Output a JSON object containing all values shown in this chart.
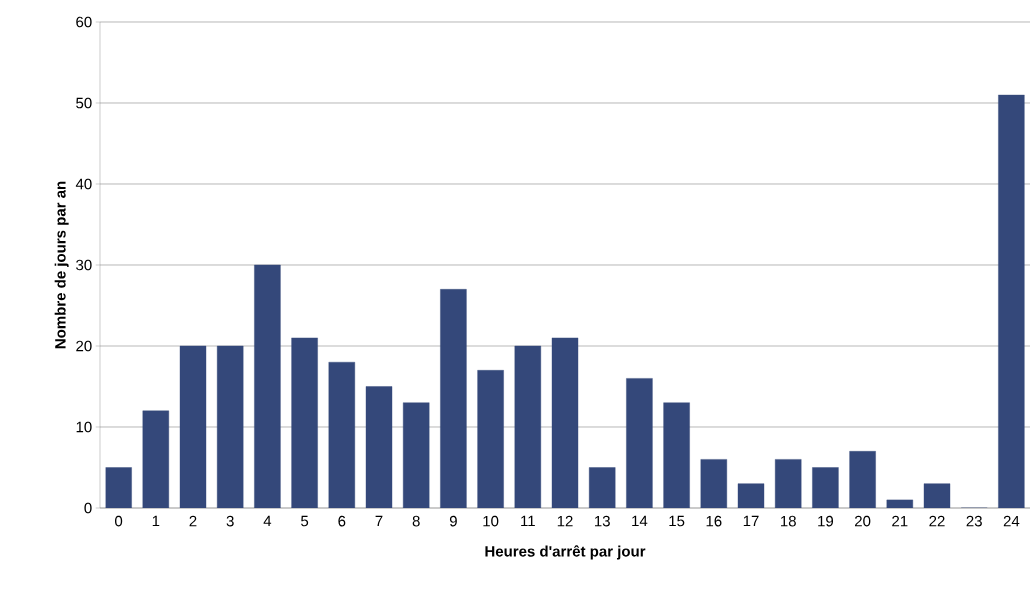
{
  "chart_data": {
    "type": "bar",
    "xlabel": "Heures d'arrêt par jour",
    "ylabel": "Nombre de jours par an",
    "categories": [
      "0",
      "1",
      "2",
      "3",
      "4",
      "5",
      "6",
      "7",
      "8",
      "9",
      "10",
      "11",
      "12",
      "13",
      "14",
      "15",
      "16",
      "17",
      "18",
      "19",
      "20",
      "21",
      "22",
      "23",
      "24"
    ],
    "values": [
      5,
      12,
      20,
      20,
      30,
      21,
      18,
      15,
      13,
      27,
      17,
      20,
      21,
      5,
      16,
      13,
      6,
      3,
      6,
      5,
      7,
      1,
      3,
      0,
      51
    ],
    "color": "#34487a",
    "ylim": [
      0,
      60
    ],
    "yticks": [
      0,
      10,
      20,
      30,
      40,
      50,
      60
    ],
    "grid": "y"
  }
}
